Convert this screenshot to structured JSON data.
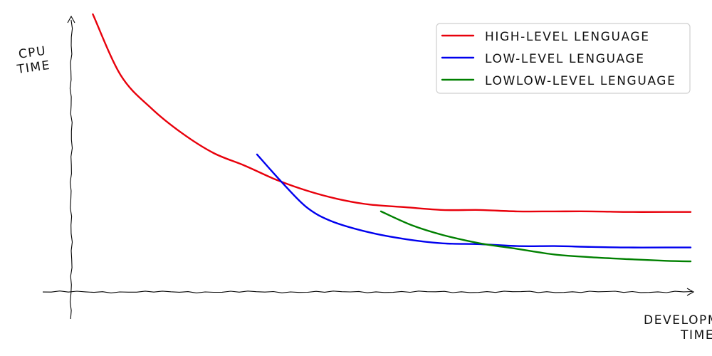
{
  "chart_data": {
    "type": "line",
    "style": "xkcd hand-drawn",
    "title": "",
    "xlabel": "DEVELOPMENT TIME",
    "ylabel": "CPU TIME",
    "xlabel_lines": [
      "DEVELOPMENT",
      "TIME"
    ],
    "ylabel_lines": [
      "CPU",
      "TIME"
    ],
    "xlim": [
      0,
      10
    ],
    "ylim": [
      0,
      10
    ],
    "grid": false,
    "ticks": false,
    "legend_position": "top-right",
    "series": [
      {
        "name": "HIGH-LEVEL LENGUAGE",
        "color": "#e8000b",
        "x": [
          0.35,
          0.8,
          1.3,
          1.8,
          2.3,
          2.8,
          3.3,
          3.8,
          4.3,
          4.8,
          5.4,
          6.0,
          6.6,
          7.2,
          7.8,
          8.4,
          9.0,
          9.6,
          10.0
        ],
        "y": [
          10.0,
          7.8,
          6.6,
          5.7,
          5.0,
          4.55,
          4.05,
          3.65,
          3.35,
          3.15,
          3.05,
          2.95,
          2.95,
          2.9,
          2.9,
          2.9,
          2.88,
          2.88,
          2.88
        ]
      },
      {
        "name": "LOW-LEVEL LENGUAGE",
        "color": "#0000ee",
        "x": [
          3.0,
          3.4,
          3.8,
          4.2,
          4.8,
          5.4,
          6.0,
          6.6,
          7.2,
          7.8,
          8.4,
          9.0,
          9.6,
          10.0
        ],
        "y": [
          4.95,
          3.95,
          3.05,
          2.55,
          2.15,
          1.9,
          1.75,
          1.72,
          1.65,
          1.65,
          1.62,
          1.6,
          1.6,
          1.6
        ]
      },
      {
        "name": "LOWLOW-LEVEL LENGUAGE",
        "color": "#008000",
        "x": [
          5.0,
          5.5,
          6.0,
          6.6,
          7.2,
          7.8,
          8.4,
          9.0,
          9.6,
          10.0
        ],
        "y": [
          2.9,
          2.4,
          2.05,
          1.75,
          1.55,
          1.35,
          1.25,
          1.18,
          1.12,
          1.1
        ]
      }
    ]
  }
}
